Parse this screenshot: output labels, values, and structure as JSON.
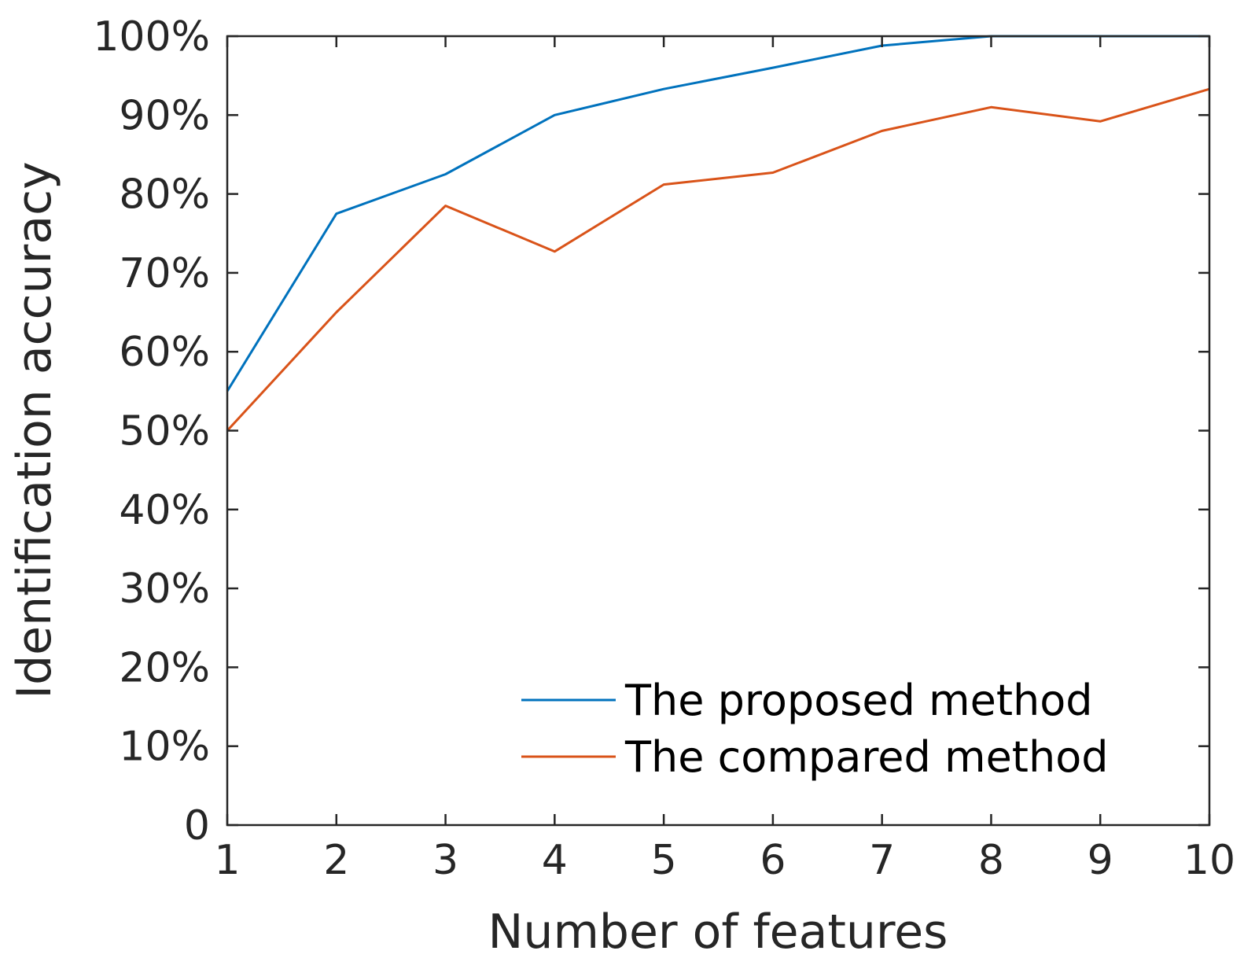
{
  "chart_data": {
    "type": "line",
    "title": "",
    "xlabel": "Number of features",
    "ylabel": "Identification accuracy",
    "x": [
      1,
      2,
      3,
      4,
      5,
      6,
      7,
      8,
      9,
      10
    ],
    "xlim": [
      1,
      10
    ],
    "ylim": [
      0,
      100
    ],
    "xticks": [
      "1",
      "2",
      "3",
      "4",
      "5",
      "6",
      "7",
      "8",
      "9",
      "10"
    ],
    "yticks": [
      {
        "value": 0,
        "label": "0"
      },
      {
        "value": 10,
        "label": "10%"
      },
      {
        "value": 20,
        "label": "20%"
      },
      {
        "value": 30,
        "label": "30%"
      },
      {
        "value": 40,
        "label": "40%"
      },
      {
        "value": 50,
        "label": "50%"
      },
      {
        "value": 60,
        "label": "60%"
      },
      {
        "value": 70,
        "label": "70%"
      },
      {
        "value": 80,
        "label": "80%"
      },
      {
        "value": 90,
        "label": "90%"
      },
      {
        "value": 100,
        "label": "100%"
      }
    ],
    "grid": false,
    "box": true,
    "legend_location": "bottom-right",
    "series": [
      {
        "name": "The proposed method",
        "color": "#0072BD",
        "values": [
          55,
          77.5,
          82.5,
          90,
          93.3,
          96,
          98.8,
          100,
          100,
          100
        ]
      },
      {
        "name": "The compared method",
        "color": "#D95319",
        "values": [
          50,
          65,
          78.5,
          72.7,
          81.2,
          82.7,
          88,
          91,
          89.2,
          93.3
        ]
      }
    ]
  }
}
